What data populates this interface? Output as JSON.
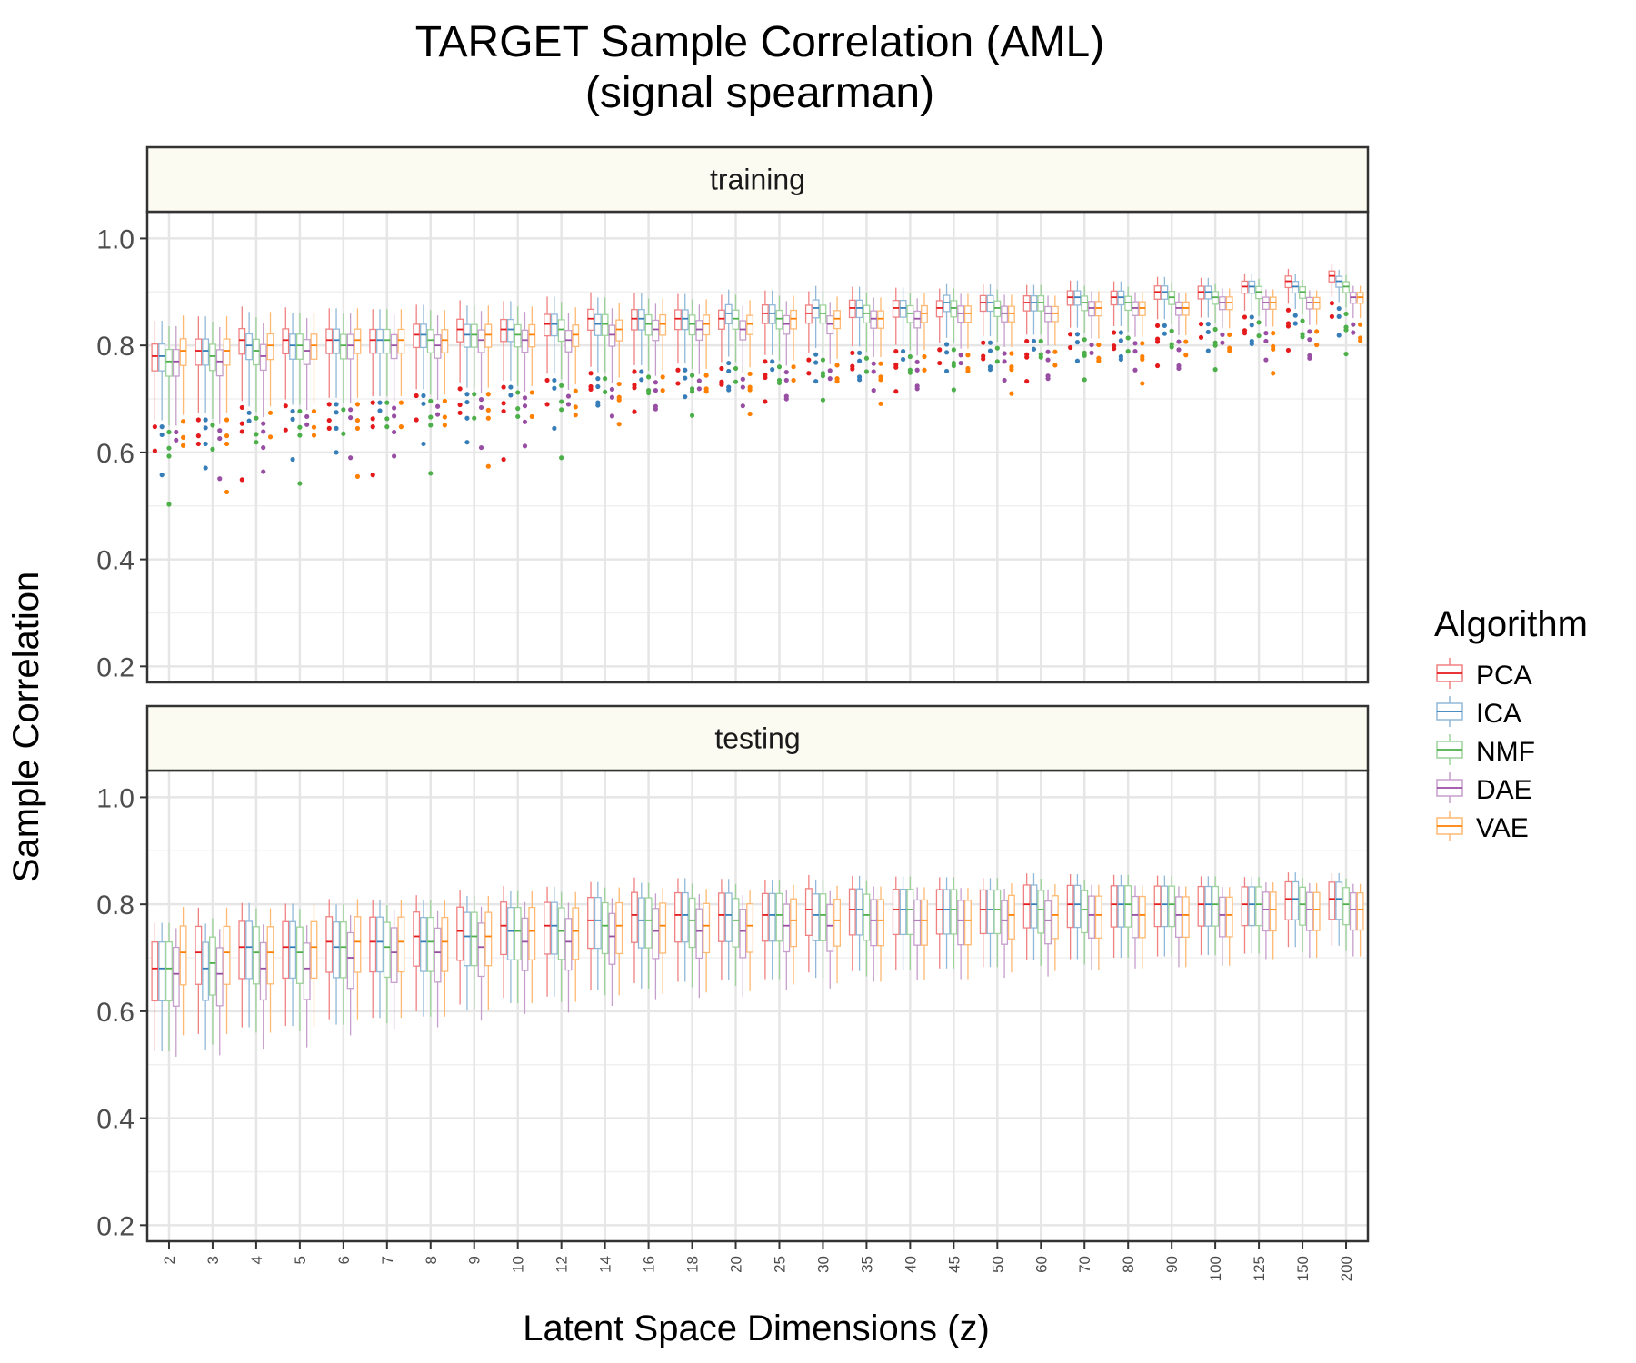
{
  "chart_data": {
    "type": "boxplot",
    "title": "TARGET Sample Correlation (AML)",
    "subtitle": "(signal spearman)",
    "xlabel": "Latent Space Dimensions (z)",
    "ylabel": "Sample Correlation",
    "ylim": [
      0.17,
      1.05
    ],
    "yticks": [
      0.2,
      0.4,
      0.6,
      0.8,
      1.0
    ],
    "ytick_labels": [
      "0.2",
      "0.4",
      "0.6",
      "0.8",
      "1.0"
    ],
    "grid": true,
    "categories": [
      "2",
      "3",
      "4",
      "5",
      "6",
      "7",
      "8",
      "9",
      "10",
      "12",
      "14",
      "16",
      "18",
      "20",
      "25",
      "30",
      "35",
      "40",
      "45",
      "50",
      "60",
      "70",
      "80",
      "90",
      "100",
      "125",
      "150",
      "200"
    ],
    "legend": {
      "title": "Algorithm",
      "position": "right",
      "entries": [
        "PCA",
        "ICA",
        "NMF",
        "DAE",
        "VAE"
      ]
    },
    "series_colors": {
      "PCA": "#e41a1c",
      "ICA": "#377eb8",
      "NMF": "#4daf4a",
      "DAE": "#984ea3",
      "VAE": "#ff7f00"
    },
    "panels": [
      {
        "name": "training",
        "medians": {
          "PCA": [
            0.78,
            0.79,
            0.81,
            0.81,
            0.81,
            0.81,
            0.82,
            0.83,
            0.83,
            0.84,
            0.85,
            0.85,
            0.85,
            0.85,
            0.86,
            0.86,
            0.87,
            0.87,
            0.87,
            0.88,
            0.88,
            0.89,
            0.89,
            0.9,
            0.9,
            0.91,
            0.92,
            0.93
          ],
          "ICA": [
            0.78,
            0.79,
            0.8,
            0.8,
            0.81,
            0.81,
            0.82,
            0.82,
            0.83,
            0.84,
            0.84,
            0.85,
            0.85,
            0.86,
            0.86,
            0.87,
            0.87,
            0.87,
            0.88,
            0.88,
            0.88,
            0.89,
            0.89,
            0.9,
            0.9,
            0.91,
            0.91,
            0.92
          ],
          "NMF": [
            0.77,
            0.78,
            0.79,
            0.8,
            0.8,
            0.81,
            0.81,
            0.82,
            0.82,
            0.83,
            0.84,
            0.84,
            0.84,
            0.85,
            0.85,
            0.86,
            0.86,
            0.86,
            0.87,
            0.87,
            0.88,
            0.88,
            0.88,
            0.89,
            0.89,
            0.9,
            0.9,
            0.91
          ],
          "DAE": [
            0.77,
            0.77,
            0.78,
            0.79,
            0.8,
            0.8,
            0.8,
            0.81,
            0.81,
            0.81,
            0.82,
            0.83,
            0.83,
            0.83,
            0.84,
            0.84,
            0.85,
            0.85,
            0.86,
            0.86,
            0.86,
            0.87,
            0.87,
            0.87,
            0.88,
            0.88,
            0.88,
            0.89
          ],
          "VAE": [
            0.79,
            0.79,
            0.8,
            0.8,
            0.81,
            0.81,
            0.81,
            0.82,
            0.82,
            0.82,
            0.83,
            0.84,
            0.84,
            0.84,
            0.85,
            0.85,
            0.85,
            0.86,
            0.86,
            0.86,
            0.86,
            0.87,
            0.87,
            0.87,
            0.88,
            0.88,
            0.88,
            0.89
          ]
        }
      },
      {
        "name": "testing",
        "medians": {
          "PCA": [
            0.68,
            0.71,
            0.72,
            0.72,
            0.73,
            0.73,
            0.74,
            0.75,
            0.76,
            0.76,
            0.77,
            0.78,
            0.78,
            0.78,
            0.78,
            0.79,
            0.79,
            0.79,
            0.79,
            0.79,
            0.8,
            0.8,
            0.8,
            0.8,
            0.8,
            0.8,
            0.81,
            0.81
          ],
          "ICA": [
            0.68,
            0.68,
            0.72,
            0.72,
            0.72,
            0.73,
            0.73,
            0.74,
            0.75,
            0.76,
            0.77,
            0.77,
            0.78,
            0.78,
            0.78,
            0.78,
            0.79,
            0.79,
            0.79,
            0.79,
            0.8,
            0.8,
            0.8,
            0.8,
            0.8,
            0.8,
            0.81,
            0.81
          ],
          "NMF": [
            0.68,
            0.69,
            0.71,
            0.71,
            0.72,
            0.72,
            0.73,
            0.74,
            0.75,
            0.75,
            0.76,
            0.77,
            0.77,
            0.77,
            0.78,
            0.78,
            0.78,
            0.79,
            0.79,
            0.79,
            0.79,
            0.79,
            0.8,
            0.8,
            0.8,
            0.8,
            0.8,
            0.8
          ],
          "DAE": [
            0.67,
            0.67,
            0.68,
            0.68,
            0.7,
            0.71,
            0.71,
            0.72,
            0.73,
            0.73,
            0.74,
            0.75,
            0.75,
            0.75,
            0.76,
            0.76,
            0.77,
            0.77,
            0.77,
            0.77,
            0.77,
            0.78,
            0.78,
            0.78,
            0.78,
            0.79,
            0.79,
            0.79
          ],
          "VAE": [
            0.71,
            0.71,
            0.71,
            0.72,
            0.73,
            0.73,
            0.73,
            0.74,
            0.75,
            0.75,
            0.76,
            0.76,
            0.76,
            0.76,
            0.77,
            0.77,
            0.77,
            0.77,
            0.77,
            0.78,
            0.78,
            0.78,
            0.78,
            0.78,
            0.78,
            0.79,
            0.79,
            0.79
          ]
        }
      }
    ]
  }
}
